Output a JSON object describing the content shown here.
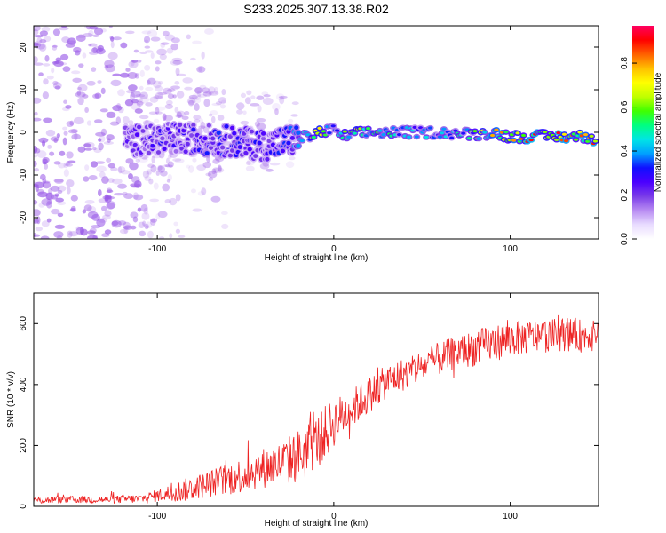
{
  "figure_title": "S233.2025.307.13.38.R02",
  "colors": {
    "snr_line": "#ee2222",
    "spectrum_scatter": "#9a5ae8",
    "colormap": [
      "#ffffff",
      "#e9dcff",
      "#b98cf2",
      "#7a3ce8",
      "#4b00ff",
      "#1010ff",
      "#00a0ff",
      "#00e5e5",
      "#00ff80",
      "#40ff00",
      "#c0ff00",
      "#ffff00",
      "#ffc000",
      "#ff6000",
      "#ff0000",
      "#ff0060"
    ]
  },
  "chart_data": [
    {
      "type": "heatmap",
      "title": "S233.2025.307.13.38.R02",
      "xlabel": "Height of straight line (km)",
      "ylabel": "Frequency (Hz)",
      "xlim": [
        -170,
        150
      ],
      "ylim": [
        -25,
        25
      ],
      "xticks": [
        -100,
        0,
        100
      ],
      "xtick_labels": [
        "-100",
        "0",
        "100"
      ],
      "yticks": [
        -20,
        -10,
        0,
        10,
        20
      ],
      "ytick_labels": [
        "-20",
        "-10",
        "0",
        "10",
        "20"
      ],
      "colorbar": {
        "label": "Normalized spectral amplitude",
        "range": [
          0,
          0.97
        ],
        "ticks": [
          0.0,
          0.2,
          0.4,
          0.6,
          0.8
        ],
        "tick_labels": [
          "0.0",
          "0.2",
          "0.4",
          "0.6",
          "0.8"
        ]
      },
      "signal_track": {
        "description_points_x": [
          -115,
          -100,
          -80,
          -60,
          -40,
          -25,
          -15,
          -8,
          0,
          5,
          10,
          20,
          40,
          60,
          80,
          90,
          100,
          120,
          140,
          148
        ],
        "frequency_hz": [
          -2,
          -1.5,
          -1.5,
          -2,
          -3,
          -2,
          -1,
          0,
          0.5,
          -1,
          -0.5,
          0,
          0,
          0,
          -0.5,
          0,
          -1,
          -1,
          -1,
          -1.5
        ],
        "amplitude": [
          0.25,
          0.3,
          0.3,
          0.35,
          0.3,
          0.35,
          0.55,
          0.85,
          0.4,
          0.6,
          0.75,
          0.6,
          0.5,
          0.45,
          0.6,
          0.8,
          0.85,
          0.95,
          0.9,
          0.9
        ]
      }
    },
    {
      "type": "line",
      "xlabel": "Height of straight line (km)",
      "ylabel": "SNR (10 * v/v)",
      "xlim": [
        -170,
        150
      ],
      "ylim": [
        0,
        700
      ],
      "xticks": [
        -100,
        0,
        100
      ],
      "xtick_labels": [
        "-100",
        "0",
        "100"
      ],
      "yticks": [
        0,
        200,
        400,
        600
      ],
      "ytick_labels": [
        "0",
        "200",
        "400",
        "600"
      ],
      "series": [
        {
          "name": "SNR",
          "x": [
            -170,
            -150,
            -130,
            -110,
            -100,
            -90,
            -80,
            -70,
            -60,
            -50,
            -40,
            -30,
            -20,
            -15,
            -10,
            -5,
            0,
            5,
            10,
            20,
            30,
            40,
            50,
            60,
            70,
            80,
            90,
            100,
            110,
            120,
            130,
            140,
            150
          ],
          "y": [
            20,
            22,
            22,
            25,
            35,
            45,
            60,
            75,
            90,
            105,
            125,
            140,
            165,
            185,
            215,
            240,
            275,
            300,
            320,
            365,
            410,
            435,
            460,
            485,
            505,
            520,
            535,
            550,
            555,
            560,
            565,
            560,
            570
          ],
          "noise_amplitude": [
            12,
            12,
            12,
            15,
            20,
            35,
            40,
            45,
            55,
            60,
            65,
            75,
            90,
            100,
            80,
            90,
            80,
            70,
            65,
            60,
            55,
            55,
            55,
            55,
            55,
            60,
            60,
            60,
            55,
            55,
            55,
            55,
            40
          ]
        }
      ]
    }
  ]
}
